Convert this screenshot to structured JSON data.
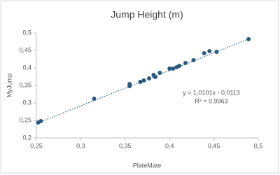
{
  "chart_data": {
    "type": "scatter",
    "title": "Jump Height (m)",
    "x_label": "PlateMate",
    "y_label": "MyJump",
    "x": [
      0.252,
      0.255,
      0.315,
      0.355,
      0.355,
      0.367,
      0.371,
      0.377,
      0.382,
      0.384,
      0.389,
      0.4,
      0.404,
      0.408,
      0.411,
      0.418,
      0.427,
      0.439,
      0.445,
      0.453,
      0.489
    ],
    "values": [
      0.244,
      0.248,
      0.312,
      0.348,
      0.354,
      0.36,
      0.364,
      0.37,
      0.38,
      0.374,
      0.386,
      0.398,
      0.398,
      0.402,
      0.406,
      0.414,
      0.422,
      0.442,
      0.448,
      0.446,
      0.482
    ],
    "color": "#2a5a84",
    "xlim": [
      0.25,
      0.5
    ],
    "xticks": [
      {
        "value": 0.25,
        "label": "0,25"
      },
      {
        "value": 0.3,
        "label": "0,3"
      },
      {
        "value": 0.35,
        "label": "0,35"
      },
      {
        "value": 0.4,
        "label": "0,4"
      },
      {
        "value": 0.45,
        "label": "0,45"
      },
      {
        "value": 0.5,
        "label": "0,5"
      }
    ],
    "ylim": [
      0.2,
      0.5
    ],
    "yticks": [
      {
        "value": 0.2,
        "label": "0,2"
      },
      {
        "value": 0.25,
        "label": "0,25"
      },
      {
        "value": 0.3,
        "label": "0,3"
      },
      {
        "value": 0.35,
        "label": "0,35"
      },
      {
        "value": 0.4,
        "label": "0,4"
      },
      {
        "value": 0.45,
        "label": "0,45"
      },
      {
        "value": 0.5,
        "label": "0,5"
      }
    ],
    "trendline": {
      "slope": 1.0101,
      "intercept": -0.0113,
      "equation": "y = 1,0101x - 0,0113",
      "r2_label": "R² = 0,9963",
      "color": "#2a5a84"
    }
  }
}
